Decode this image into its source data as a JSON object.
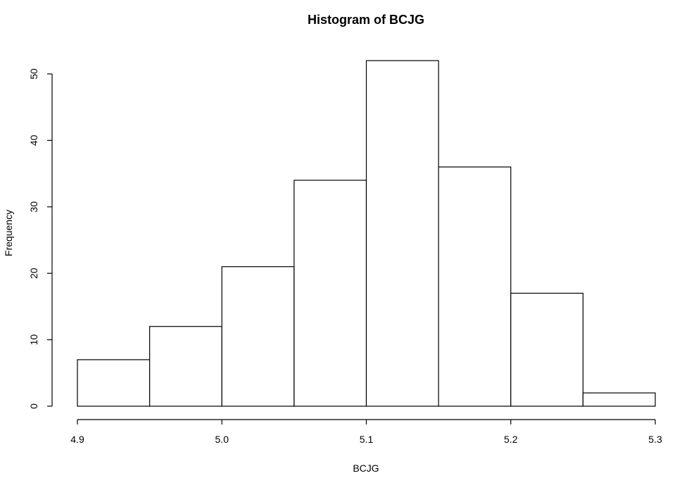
{
  "chart_data": {
    "type": "bar",
    "title": "Histogram of BCJG",
    "xlabel": "BCJG",
    "ylabel": "Frequency",
    "bins": [
      {
        "start": 4.9,
        "end": 4.95,
        "count": 7
      },
      {
        "start": 4.95,
        "end": 5.0,
        "count": 12
      },
      {
        "start": 5.0,
        "end": 5.05,
        "count": 21
      },
      {
        "start": 5.05,
        "end": 5.1,
        "count": 34
      },
      {
        "start": 5.1,
        "end": 5.15,
        "count": 52
      },
      {
        "start": 5.15,
        "end": 5.2,
        "count": 36
      },
      {
        "start": 5.2,
        "end": 5.25,
        "count": 17
      },
      {
        "start": 5.25,
        "end": 5.3,
        "count": 2
      }
    ],
    "xlim": [
      4.9,
      5.3
    ],
    "ylim": [
      0,
      50
    ],
    "x_ticks": [
      "4.9",
      "5.0",
      "5.1",
      "5.2",
      "5.3"
    ],
    "y_ticks": [
      "0",
      "10",
      "20",
      "30",
      "40",
      "50"
    ],
    "grid": false,
    "bar_fill": "#ffffff",
    "bar_stroke": "#000000"
  }
}
